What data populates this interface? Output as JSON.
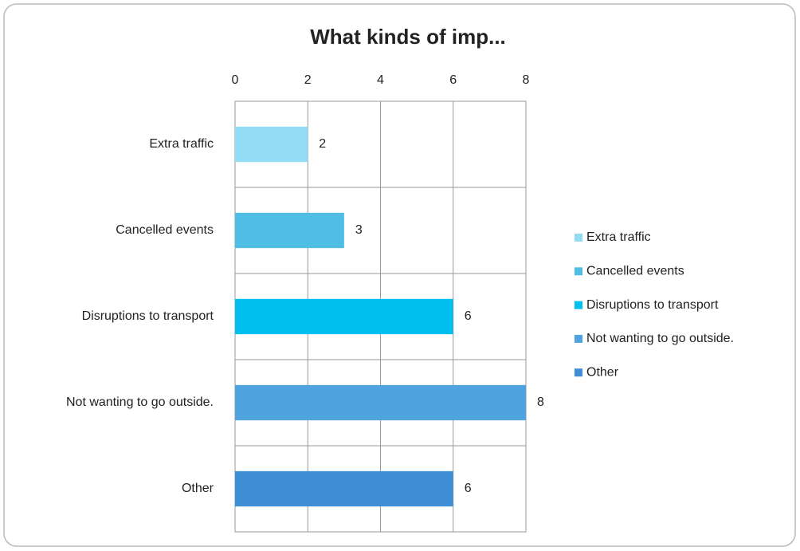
{
  "chart_data": {
    "type": "bar",
    "orientation": "horizontal",
    "title": "What kinds of imp...",
    "categories": [
      "Extra traffic",
      "Cancelled events",
      "Disruptions to transport",
      "Not wanting to go outside.",
      "Other"
    ],
    "values": [
      2,
      3,
      6,
      8,
      6
    ],
    "colors": [
      "#93dcf5",
      "#4fbde4",
      "#00c0f0",
      "#4fa3df",
      "#3f8fd6"
    ],
    "xlim": [
      0,
      8
    ],
    "xticks": [
      0,
      2,
      4,
      6,
      8
    ],
    "grid": true,
    "legend": "right"
  }
}
